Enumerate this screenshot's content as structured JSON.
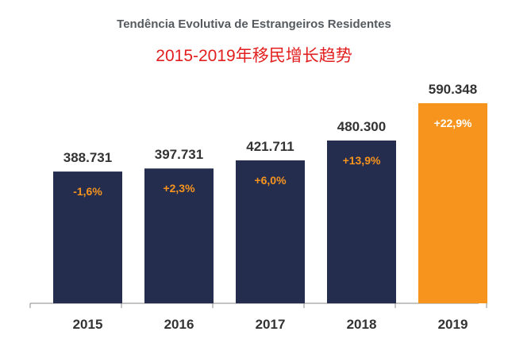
{
  "chart_data": {
    "type": "bar",
    "title": "Tendência Evolutiva de Estrangeiros Residentes",
    "subtitle": "2015-2019年移民增长趋势",
    "categories": [
      "2015",
      "2016",
      "2017",
      "2018",
      "2019"
    ],
    "values": [
      388731,
      397731,
      421711,
      480300,
      590348
    ],
    "value_labels": [
      "388.731",
      "397.731",
      "421.711",
      "480.300",
      "590.348"
    ],
    "growth_labels": [
      "-1,6%",
      "+2,3%",
      "+6,0%",
      "+13,9%",
      "+22,9%"
    ],
    "xlabel": "",
    "ylabel": "",
    "ylim": [
      0,
      600000
    ],
    "grid": false,
    "legend": "none",
    "colors": {
      "bar": "#252d4f",
      "highlight_bar": "#f7941d",
      "growth_text_dark": "#f7941d",
      "growth_text_highlight": "#ffffff",
      "value_text": "#333333",
      "axis": "#888888"
    },
    "highlight_index": 4
  }
}
